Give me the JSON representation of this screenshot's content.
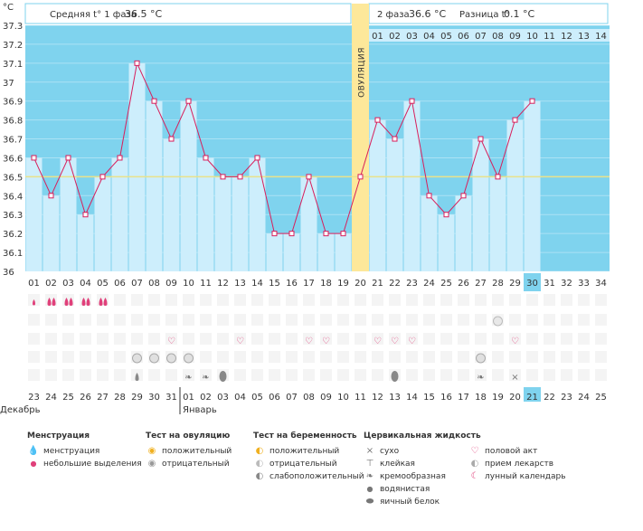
{
  "header": {
    "unit_label": "°C",
    "phase1_label": "Средняя t° 1 фаза",
    "phase1_value": "36.5 °C",
    "phase2_label": "2 фаза",
    "phase2_value": "36.6 °C",
    "diff_label": "Разница t°",
    "diff_value": "0.1 °C",
    "ovulation_label": "ОВУЛЯЦИЯ"
  },
  "months": {
    "first": "Декабрь",
    "second": "Январь"
  },
  "chart_data": {
    "type": "line",
    "title": "",
    "ylabel": "°C",
    "ylim": [
      36.0,
      37.3
    ],
    "y_ticks": [
      "37.3",
      "37.2",
      "37.1",
      "37",
      "36.9",
      "36.8",
      "36.7",
      "36.6",
      "36.5",
      "36.4",
      "36.3",
      "36.2",
      "36.1",
      "36"
    ],
    "coverline": 36.5,
    "ovulation_day": 20,
    "highlight_day": 30,
    "highlight_date": "21",
    "days": [
      "01",
      "02",
      "03",
      "04",
      "05",
      "06",
      "07",
      "08",
      "09",
      "10",
      "11",
      "12",
      "13",
      "14",
      "15",
      "16",
      "17",
      "18",
      "19",
      "20",
      "21",
      "22",
      "23",
      "24",
      "25",
      "26",
      "27",
      "28",
      "29",
      "30",
      "31",
      "32",
      "33",
      "34"
    ],
    "phase2_days": [
      "01",
      "02",
      "03",
      "04",
      "05",
      "06",
      "07",
      "08",
      "09",
      "10",
      "11",
      "12",
      "13",
      "14"
    ],
    "temps": [
      36.6,
      36.4,
      36.6,
      36.3,
      36.5,
      36.6,
      37.1,
      36.9,
      36.7,
      36.9,
      36.6,
      36.5,
      36.5,
      36.6,
      36.2,
      36.2,
      36.5,
      36.2,
      36.2,
      36.5,
      36.8,
      36.7,
      36.9,
      36.4,
      36.3,
      36.4,
      36.7,
      36.5,
      36.8,
      36.9
    ],
    "dates": [
      "23",
      "24",
      "25",
      "26",
      "27",
      "28",
      "29",
      "30",
      "31",
      "01",
      "02",
      "03",
      "04",
      "05",
      "06",
      "07",
      "08",
      "09",
      "10",
      "11",
      "12",
      "13",
      "14",
      "15",
      "16",
      "17",
      "18",
      "19",
      "20",
      "21",
      "22",
      "23",
      "24",
      "25"
    ],
    "red_dates": [
      6,
      7,
      13,
      14,
      20,
      21,
      27,
      28,
      34
    ],
    "menstruation": [
      1,
      2,
      2,
      2,
      2
    ],
    "ovulation_test_negative": [
      7,
      8,
      9,
      10,
      27
    ],
    "pregnancy_test_negative": [
      28
    ],
    "intercourse": [
      9,
      13,
      17,
      18,
      21,
      22,
      23,
      29
    ],
    "cervical": [
      {
        "day": 7,
        "type": "watery"
      },
      {
        "day": 10,
        "type": "creamy"
      },
      {
        "day": 11,
        "type": "creamy"
      },
      {
        "day": 12,
        "type": "eggwhite"
      },
      {
        "day": 22,
        "type": "eggwhite"
      },
      {
        "day": 27,
        "type": "creamy"
      },
      {
        "day": 29,
        "type": "dry"
      }
    ]
  },
  "legend": {
    "menstruation": {
      "title": "Менструация",
      "items": [
        "менструация",
        "небольшие выделения"
      ]
    },
    "ovulation_test": {
      "title": "Тест на овуляцию",
      "items": [
        "положительный",
        "отрицательный"
      ]
    },
    "pregnancy_test": {
      "title": "Тест на беременность",
      "items": [
        "положительный",
        "отрицательный",
        "слабоположительный"
      ]
    },
    "cervical": {
      "title": "Цервикальная жидкость",
      "items": [
        "сухо",
        "клейкая",
        "кремообразная",
        "водянистая",
        "яичный белок"
      ]
    },
    "other": {
      "items": [
        "половой акт",
        "прием лекарств",
        "лунный календарь"
      ]
    }
  },
  "colors": {
    "bg_blue": "#7fd3ee",
    "bar_light": "#cdeefc",
    "line": "#d81e5b",
    "ovulation": "#fde89a",
    "coverline": "#f0e68c",
    "highlight": "#7fd3ee",
    "red": "#cc0033"
  }
}
